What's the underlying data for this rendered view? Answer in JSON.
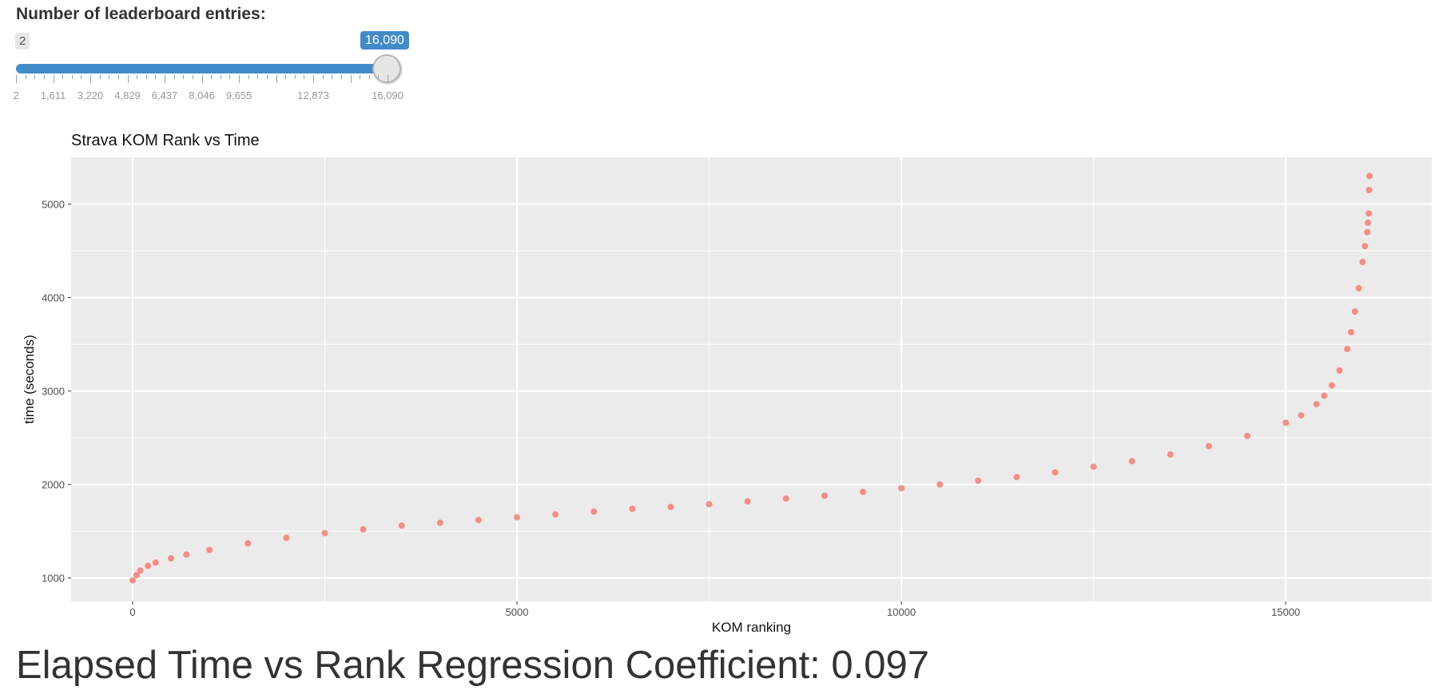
{
  "slider": {
    "label": "Number of leaderboard entries:",
    "min_label": "2",
    "current_label": "16,090",
    "min": 2,
    "max": 16090,
    "value": 16090,
    "tick_labels": [
      {
        "text": "2",
        "value": 2
      },
      {
        "text": "1,611",
        "value": 1611
      },
      {
        "text": "3,220",
        "value": 3220
      },
      {
        "text": "4,829",
        "value": 4829
      },
      {
        "text": "6,437",
        "value": 6437
      },
      {
        "text": "8,046",
        "value": 8046
      },
      {
        "text": "9,655",
        "value": 9655
      },
      {
        "text": "12,873",
        "value": 12873
      },
      {
        "text": "16,090",
        "value": 16090
      }
    ],
    "colors": {
      "fill": "#428bca",
      "track": "#e5e5e5",
      "handle": "#e6e6e6"
    }
  },
  "plot_title": "Strava KOM Rank vs Time",
  "chart_data": {
    "type": "scatter",
    "title": "Strava KOM Rank vs Time",
    "xlabel": "KOM ranking",
    "ylabel": "time (seconds)",
    "xlim": [
      -800,
      16900
    ],
    "ylim": [
      750,
      5500
    ],
    "xticks": [
      0,
      5000,
      10000,
      15000
    ],
    "yticks": [
      1000,
      2000,
      3000,
      4000,
      5000
    ],
    "grid": true,
    "point_color": "#f8766d",
    "panel_color": "#ebebeb",
    "series": [
      {
        "x": [
          0,
          50,
          100,
          200,
          300,
          500,
          700,
          1000,
          1500,
          2000,
          2500,
          3000,
          3500,
          4000,
          4500,
          5000,
          5500,
          6000,
          6500,
          7000,
          7500,
          8000,
          8500,
          9000,
          9500,
          10000,
          10500,
          11000,
          11500,
          12000,
          12500,
          13000,
          13500,
          14000,
          14500,
          15000,
          15200,
          15400,
          15500,
          15600,
          15700,
          15800,
          15850,
          15900,
          15950,
          16000,
          16030,
          16060,
          16070,
          16080,
          16085,
          16090
        ],
        "y": [
          975,
          1030,
          1080,
          1130,
          1165,
          1210,
          1250,
          1300,
          1370,
          1430,
          1480,
          1520,
          1560,
          1590,
          1620,
          1650,
          1680,
          1710,
          1740,
          1760,
          1790,
          1820,
          1850,
          1880,
          1920,
          1960,
          2000,
          2040,
          2080,
          2130,
          2190,
          2250,
          2320,
          2410,
          2520,
          2660,
          2740,
          2860,
          2950,
          3060,
          3220,
          3450,
          3630,
          3850,
          4100,
          4380,
          4550,
          4700,
          4800,
          4900,
          5150,
          5300
        ]
      }
    ]
  },
  "coefficient_text": "Elapsed Time vs Rank Regression Coefficient: 0.097"
}
